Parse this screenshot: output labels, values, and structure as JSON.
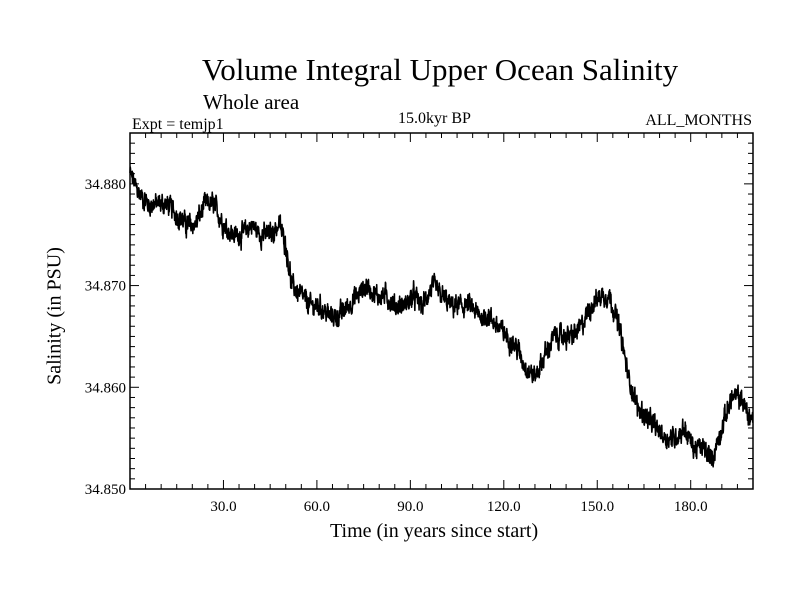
{
  "chart_data": {
    "type": "line",
    "title": "Volume Integral Upper Ocean Salinity",
    "subtitle": "Whole area",
    "left_label": "Expt = temjp1",
    "center_label": "15.0kyr BP",
    "right_label": "ALL_MONTHS",
    "xlabel": "Time (in years since start)",
    "ylabel": "Salinity (in PSU)",
    "xlim": [
      0,
      200
    ],
    "ylim": [
      34.85,
      34.885
    ],
    "xticks": [
      30,
      60,
      90,
      120,
      150,
      180
    ],
    "xtick_labels": [
      "30.0",
      "60.0",
      "90.0",
      "120.0",
      "150.0",
      "180.0"
    ],
    "yticks": [
      34.85,
      34.86,
      34.87,
      34.88
    ],
    "ytick_labels": [
      "34.850",
      "34.860",
      "34.870",
      "34.880"
    ],
    "series": [
      {
        "name": "salinity",
        "x": [
          0,
          3,
          6,
          9,
          12,
          15,
          18,
          21,
          24,
          27,
          30,
          33,
          36,
          39,
          42,
          45,
          48,
          50,
          52,
          55,
          58,
          61,
          64,
          67,
          70,
          73,
          76,
          79,
          82,
          85,
          88,
          91,
          94,
          97,
          100,
          103,
          106,
          109,
          112,
          115,
          118,
          121,
          124,
          127,
          130,
          133,
          136,
          139,
          142,
          145,
          148,
          151,
          154,
          157,
          160,
          163,
          166,
          169,
          172,
          175,
          178,
          181,
          184,
          187,
          190,
          193,
          196,
          199
        ],
        "values": [
          34.881,
          34.879,
          34.878,
          34.878,
          34.878,
          34.877,
          34.876,
          34.876,
          34.878,
          34.878,
          34.876,
          34.875,
          34.875,
          34.876,
          34.875,
          34.875,
          34.876,
          34.874,
          34.87,
          34.869,
          34.868,
          34.868,
          34.867,
          34.867,
          34.868,
          34.869,
          34.87,
          34.869,
          34.869,
          34.868,
          34.868,
          34.869,
          34.868,
          34.87,
          34.869,
          34.868,
          34.868,
          34.868,
          34.867,
          34.867,
          34.866,
          34.865,
          34.864,
          34.862,
          34.861,
          34.863,
          34.865,
          34.865,
          34.865,
          34.866,
          34.868,
          34.869,
          34.869,
          34.866,
          34.861,
          34.858,
          34.857,
          34.856,
          34.855,
          34.855,
          34.856,
          34.854,
          34.854,
          34.853,
          34.856,
          34.859,
          34.859,
          34.857
        ]
      }
    ]
  }
}
